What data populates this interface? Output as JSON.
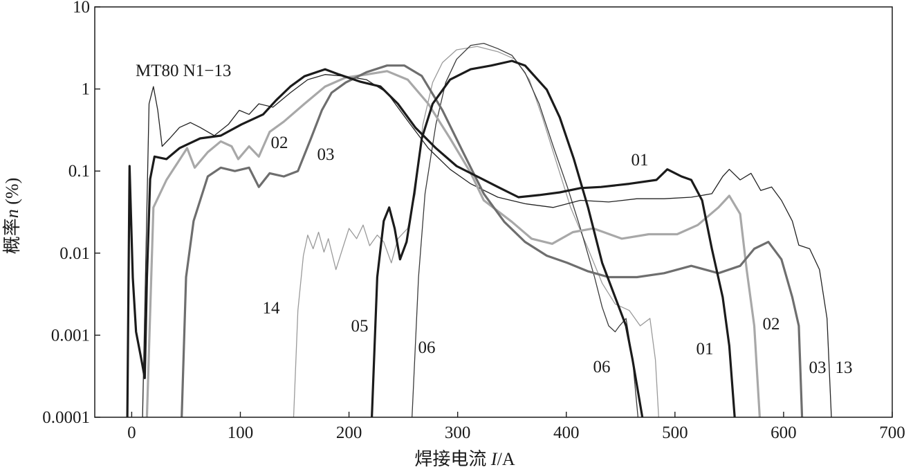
{
  "chart_data": {
    "type": "line",
    "xlabel": "焊接电流 I/A",
    "ylabel": "概率n (%)",
    "xlim": [
      -34,
      700
    ],
    "ylim": [
      0.0001,
      10
    ],
    "yscale": "log",
    "grid": false,
    "legend": "none",
    "xticks": [
      0,
      100,
      200,
      300,
      400,
      500,
      600,
      700
    ],
    "xtick_labels": [
      "0",
      "100",
      "200",
      "300",
      "400",
      "500",
      "600",
      "700"
    ],
    "yticks": [
      10,
      1,
      0.1,
      0.01,
      0.001,
      0.0001
    ],
    "ytick_labels": [
      "10",
      "1",
      "0.1",
      "0.01",
      "0.001",
      "0.0001"
    ],
    "annotations": [
      "MT80 N1−13"
    ],
    "series": [
      {
        "name": "01",
        "color": "#1b1b1b",
        "style": "thick",
        "points": [
          [
            -4,
            0.0001
          ],
          [
            -2,
            0.115
          ],
          [
            1,
            0.005
          ],
          [
            4,
            0.0011
          ],
          [
            9,
            0.0005
          ],
          [
            12,
            0.0003
          ],
          [
            14,
            0.005
          ],
          [
            17,
            0.08
          ],
          [
            21,
            0.15
          ],
          [
            32,
            0.14
          ],
          [
            44,
            0.19
          ],
          [
            63,
            0.25
          ],
          [
            82,
            0.27
          ],
          [
            101,
            0.37
          ],
          [
            121,
            0.49
          ],
          [
            133,
            0.73
          ],
          [
            146,
            1.07
          ],
          [
            159,
            1.43
          ],
          [
            178,
            1.74
          ],
          [
            191,
            1.5
          ],
          [
            210,
            1.23
          ],
          [
            229,
            1.07
          ],
          [
            245,
            0.66
          ],
          [
            261,
            0.34
          ],
          [
            280,
            0.19
          ],
          [
            299,
            0.115
          ],
          [
            318,
            0.086
          ],
          [
            337,
            0.064
          ],
          [
            356,
            0.048
          ],
          [
            375,
            0.051
          ],
          [
            394,
            0.055
          ],
          [
            413,
            0.062
          ],
          [
            432,
            0.064
          ],
          [
            458,
            0.07
          ],
          [
            483,
            0.078
          ],
          [
            493,
            0.105
          ],
          [
            506,
            0.086
          ],
          [
            515,
            0.078
          ],
          [
            525,
            0.044
          ],
          [
            534,
            0.0113
          ],
          [
            544,
            0.0029
          ],
          [
            550,
            0.00074
          ],
          [
            555,
            0.0001
          ]
        ]
      },
      {
        "name": "02",
        "color": "#a8a8a8",
        "style": "thick",
        "points": [
          [
            14,
            0.0001
          ],
          [
            20,
            0.036
          ],
          [
            32,
            0.078
          ],
          [
            51,
            0.19
          ],
          [
            58,
            0.11
          ],
          [
            70,
            0.17
          ],
          [
            82,
            0.23
          ],
          [
            92,
            0.2
          ],
          [
            98,
            0.14
          ],
          [
            108,
            0.2
          ],
          [
            117,
            0.15
          ],
          [
            127,
            0.3
          ],
          [
            140,
            0.4
          ],
          [
            159,
            0.66
          ],
          [
            178,
            1.07
          ],
          [
            197,
            1.38
          ],
          [
            216,
            1.5
          ],
          [
            235,
            1.65
          ],
          [
            254,
            1.3
          ],
          [
            273,
            0.66
          ],
          [
            293,
            0.25
          ],
          [
            312,
            0.095
          ],
          [
            324,
            0.044
          ],
          [
            350,
            0.024
          ],
          [
            368,
            0.015
          ],
          [
            387,
            0.013
          ],
          [
            406,
            0.018
          ],
          [
            425,
            0.02
          ],
          [
            451,
            0.015
          ],
          [
            476,
            0.017
          ],
          [
            502,
            0.017
          ],
          [
            521,
            0.022
          ],
          [
            540,
            0.036
          ],
          [
            550,
            0.05
          ],
          [
            560,
            0.03
          ],
          [
            566,
            0.0063
          ],
          [
            573,
            0.0013
          ],
          [
            578,
            0.0001
          ]
        ]
      },
      {
        "name": "03",
        "color": "#6e6e6e",
        "style": "thick",
        "points": [
          [
            46,
            0.0001
          ],
          [
            50,
            0.0051
          ],
          [
            57,
            0.0246
          ],
          [
            63,
            0.044
          ],
          [
            70,
            0.086
          ],
          [
            82,
            0.11
          ],
          [
            95,
            0.1
          ],
          [
            108,
            0.11
          ],
          [
            117,
            0.064
          ],
          [
            127,
            0.094
          ],
          [
            140,
            0.086
          ],
          [
            153,
            0.1
          ],
          [
            165,
            0.25
          ],
          [
            175,
            0.55
          ],
          [
            184,
            0.9
          ],
          [
            197,
            1.2
          ],
          [
            216,
            1.6
          ],
          [
            235,
            1.93
          ],
          [
            251,
            1.93
          ],
          [
            267,
            1.44
          ],
          [
            286,
            0.55
          ],
          [
            305,
            0.17
          ],
          [
            324,
            0.053
          ],
          [
            343,
            0.024
          ],
          [
            362,
            0.0137
          ],
          [
            382,
            0.0093
          ],
          [
            401,
            0.0076
          ],
          [
            420,
            0.006
          ],
          [
            439,
            0.0051
          ],
          [
            465,
            0.0051
          ],
          [
            490,
            0.0057
          ],
          [
            515,
            0.007
          ],
          [
            540,
            0.0057
          ],
          [
            560,
            0.007
          ],
          [
            573,
            0.0113
          ],
          [
            586,
            0.0137
          ],
          [
            598,
            0.0084
          ],
          [
            608,
            0.0029
          ],
          [
            614,
            0.0013
          ],
          [
            617,
            0.0001
          ]
        ]
      },
      {
        "name": "05",
        "color": "#1b1b1b",
        "style": "thick",
        "points": [
          [
            221,
            0.0001
          ],
          [
            226,
            0.0051
          ],
          [
            232,
            0.0246
          ],
          [
            237,
            0.036
          ],
          [
            242,
            0.02
          ],
          [
            247,
            0.0084
          ],
          [
            253,
            0.0137
          ],
          [
            260,
            0.053
          ],
          [
            267,
            0.25
          ],
          [
            277,
            0.66
          ],
          [
            293,
            1.3
          ],
          [
            312,
            1.74
          ],
          [
            331,
            1.93
          ],
          [
            350,
            2.2
          ],
          [
            362,
            1.93
          ],
          [
            382,
            0.98
          ],
          [
            394,
            0.45
          ],
          [
            407,
            0.14
          ],
          [
            420,
            0.036
          ],
          [
            433,
            0.0076
          ],
          [
            445,
            0.0029
          ],
          [
            455,
            0.0013
          ],
          [
            461,
            0.0005
          ],
          [
            470,
            0.0001
          ]
        ]
      },
      {
        "name": "06",
        "color": "#3a3a3a",
        "style": "thin",
        "points": [
          [
            258,
            0.0001
          ],
          [
            264,
            0.0051
          ],
          [
            270,
            0.053
          ],
          [
            280,
            0.37
          ],
          [
            289,
            1.2
          ],
          [
            299,
            2.3
          ],
          [
            312,
            3.4
          ],
          [
            324,
            3.6
          ],
          [
            337,
            3.1
          ],
          [
            350,
            2.57
          ],
          [
            362,
            1.58
          ],
          [
            375,
            0.66
          ],
          [
            388,
            0.2
          ],
          [
            401,
            0.064
          ],
          [
            413,
            0.02
          ],
          [
            426,
            0.0051
          ],
          [
            433,
            0.0022
          ],
          [
            439,
            0.0013
          ],
          [
            445,
            0.0011
          ],
          [
            449,
            0.0013
          ],
          [
            455,
            0.0016
          ],
          [
            461,
            0.0005
          ],
          [
            466,
            0.0001
          ]
        ]
      },
      {
        "name": "13",
        "color": "#222222",
        "style": "thin",
        "points": [
          [
            10,
            0.0001
          ],
          [
            14,
            0.036
          ],
          [
            16,
            0.66
          ],
          [
            20,
            1.07
          ],
          [
            24,
            0.55
          ],
          [
            28,
            0.2
          ],
          [
            35,
            0.25
          ],
          [
            44,
            0.34
          ],
          [
            54,
            0.39
          ],
          [
            63,
            0.34
          ],
          [
            76,
            0.27
          ],
          [
            89,
            0.37
          ],
          [
            99,
            0.55
          ],
          [
            108,
            0.49
          ],
          [
            117,
            0.66
          ],
          [
            130,
            0.6
          ],
          [
            146,
            0.9
          ],
          [
            162,
            1.3
          ],
          [
            178,
            1.5
          ],
          [
            197,
            1.43
          ],
          [
            216,
            1.3
          ],
          [
            235,
            0.9
          ],
          [
            254,
            0.41
          ],
          [
            273,
            0.19
          ],
          [
            293,
            0.105
          ],
          [
            312,
            0.07
          ],
          [
            337,
            0.048
          ],
          [
            362,
            0.04
          ],
          [
            388,
            0.036
          ],
          [
            413,
            0.044
          ],
          [
            439,
            0.042
          ],
          [
            465,
            0.046
          ],
          [
            490,
            0.046
          ],
          [
            515,
            0.048
          ],
          [
            534,
            0.053
          ],
          [
            544,
            0.086
          ],
          [
            550,
            0.105
          ],
          [
            560,
            0.078
          ],
          [
            570,
            0.094
          ],
          [
            579,
            0.058
          ],
          [
            589,
            0.064
          ],
          [
            598,
            0.044
          ],
          [
            608,
            0.0246
          ],
          [
            614,
            0.0125
          ],
          [
            624,
            0.0113
          ],
          [
            633,
            0.0063
          ],
          [
            640,
            0.0016
          ],
          [
            644,
            0.0001
          ]
        ]
      },
      {
        "name": "14",
        "color": "#9a9a9a",
        "style": "thin",
        "points": [
          [
            149,
            0.0001
          ],
          [
            153,
            0.002
          ],
          [
            158,
            0.0093
          ],
          [
            162,
            0.0166
          ],
          [
            167,
            0.0113
          ],
          [
            172,
            0.018
          ],
          [
            177,
            0.0103
          ],
          [
            181,
            0.015
          ],
          [
            188,
            0.0063
          ],
          [
            194,
            0.0113
          ],
          [
            200,
            0.02
          ],
          [
            207,
            0.015
          ],
          [
            213,
            0.022
          ],
          [
            219,
            0.0123
          ],
          [
            226,
            0.0166
          ],
          [
            232,
            0.0137
          ],
          [
            239,
            0.0076
          ],
          [
            245,
            0.015
          ],
          [
            254,
            0.02
          ],
          [
            261,
            0.053
          ],
          [
            268,
            0.37
          ],
          [
            277,
            1.2
          ],
          [
            286,
            2.1
          ],
          [
            299,
            3.0
          ],
          [
            318,
            3.3
          ],
          [
            337,
            2.85
          ],
          [
            353,
            2.3
          ],
          [
            366,
            1.3
          ],
          [
            378,
            0.45
          ],
          [
            392,
            0.115
          ],
          [
            404,
            0.036
          ],
          [
            420,
            0.0113
          ],
          [
            433,
            0.0043
          ],
          [
            445,
            0.0024
          ],
          [
            458,
            0.002
          ],
          [
            468,
            0.0013
          ],
          [
            477,
            0.0016
          ],
          [
            482,
            0.0005
          ],
          [
            485,
            0.0001
          ]
        ]
      }
    ]
  }
}
